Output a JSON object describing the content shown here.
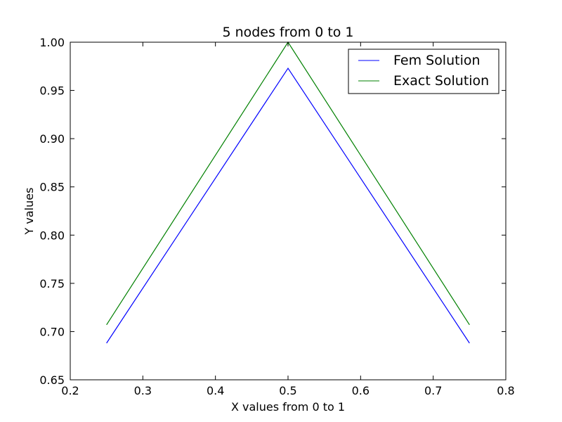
{
  "chart_data": {
    "type": "line",
    "title": "5 nodes from 0 to 1",
    "xlabel": "X values from 0 to 1",
    "ylabel": "Y values",
    "xlim": [
      0.2,
      0.8
    ],
    "ylim": [
      0.65,
      1.0
    ],
    "xticks": [
      "0.2",
      "0.3",
      "0.4",
      "0.5",
      "0.6",
      "0.7",
      "0.8"
    ],
    "yticks": [
      "0.65",
      "0.70",
      "0.75",
      "0.80",
      "0.85",
      "0.90",
      "0.95",
      "1.00"
    ],
    "grid": false,
    "legend_position": "top-right",
    "series": [
      {
        "name": "Fem Solution",
        "color": "#0000ff",
        "x": [
          0.25,
          0.5,
          0.75
        ],
        "y": [
          0.688,
          0.973,
          0.688
        ]
      },
      {
        "name": "Exact Solution",
        "color": "#008000",
        "x": [
          0.25,
          0.5,
          0.75
        ],
        "y": [
          0.707,
          1.0,
          0.707
        ]
      }
    ]
  }
}
